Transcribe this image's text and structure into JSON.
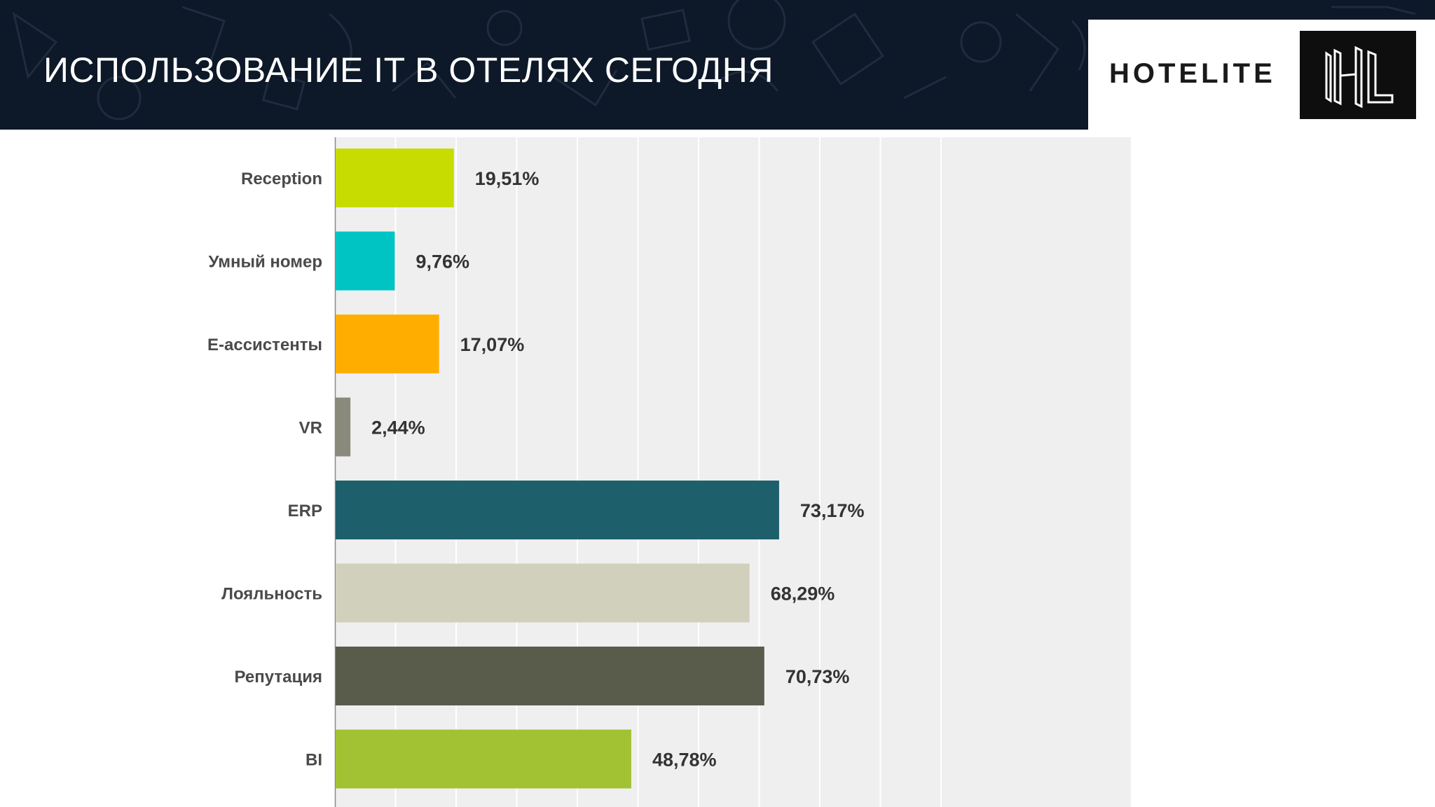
{
  "slide": {
    "title": "ИСПОЛЬЗОВАНИЕ IT В ОТЕЛЯХ СЕГОДНЯ"
  },
  "logo": {
    "wordmark": "HOTELITE",
    "monogram": "HL",
    "icon": "hl-monogram-icon"
  },
  "colors": {
    "header_background": "#0d1828",
    "plot_background": "#f0eff0",
    "gridline": "#ffffff"
  },
  "chart_data": {
    "type": "bar",
    "orientation": "horizontal",
    "categories": [
      "Reception",
      "Умный номер",
      "Е-ассистенты",
      "VR",
      "ERP",
      "Лояльность",
      "Репутация",
      "BI"
    ],
    "values": [
      19.51,
      9.76,
      17.07,
      2.44,
      73.17,
      68.29,
      70.73,
      48.78
    ],
    "value_labels": [
      "19,51%",
      "9,76%",
      "17,07%",
      "2,44%",
      "73,17%",
      "68,29%",
      "70,73%",
      "48,78%"
    ],
    "colors": [
      "#c7dc00",
      "#00c4c4",
      "#ffae00",
      "#8a8a7c",
      "#1e5f6c",
      "#d0d0bc",
      "#595c4b",
      "#a2c233"
    ],
    "xlim": [
      0,
      100
    ],
    "grid": true,
    "gridlines": 10,
    "legend": "none"
  }
}
